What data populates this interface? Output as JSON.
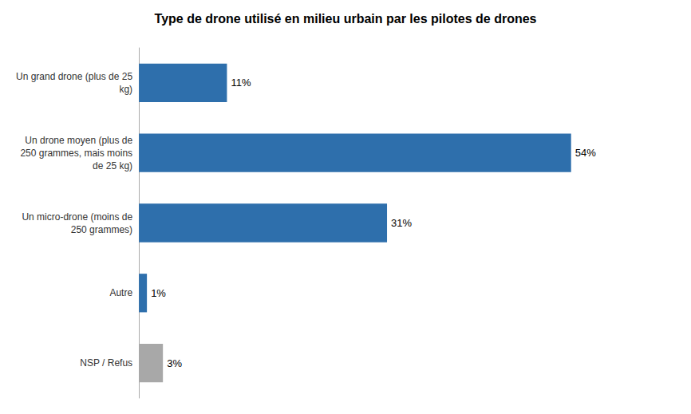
{
  "chart_data": {
    "type": "bar",
    "orientation": "horizontal",
    "title": "Type de drone utilisé en milieu urbain par les pilotes de drones",
    "categories": [
      "Un grand drone (plus de 25\nkg)",
      "Un drone moyen (plus de\n250 grammes, mais moins\nde 25 kg)",
      "Un micro-drone (moins de\n250 grammes)",
      "Autre",
      "NSP / Refus"
    ],
    "values": [
      11,
      54,
      31,
      1,
      3
    ],
    "value_labels": [
      "11%",
      "54%",
      "31%",
      "1%",
      "3%"
    ],
    "data_labels": true,
    "colors": [
      "#2E6FAC",
      "#2E6FAC",
      "#2E6FAC",
      "#2E6FAC",
      "#A8A8A8"
    ],
    "xlim": [
      0,
      63
    ],
    "tick_labels": "y",
    "grid": false
  }
}
